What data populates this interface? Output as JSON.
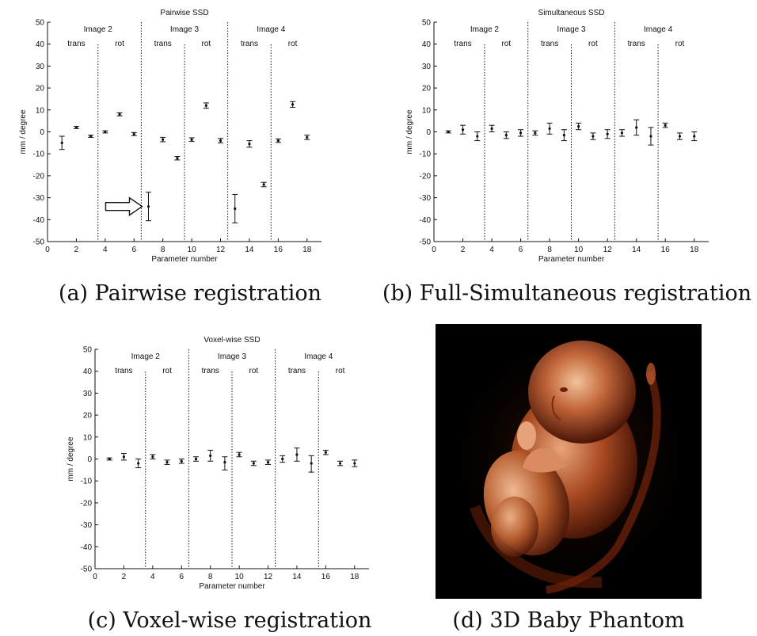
{
  "chart_data": [
    {
      "id": "a",
      "type": "scatter",
      "style": "errorbar",
      "title": "Pairwise SSD",
      "xlabel": "Parameter number",
      "ylabel": "mm / degree",
      "xlim": [
        0,
        19
      ],
      "ylim": [
        -50,
        50
      ],
      "xticks": [
        0,
        2,
        4,
        6,
        8,
        10,
        12,
        14,
        16,
        18
      ],
      "yticks": [
        50,
        40,
        30,
        20,
        10,
        0,
        -10,
        -20,
        -30,
        -40,
        -50
      ],
      "groups": [
        {
          "label": "Image 2",
          "range": [
            0.5,
            6.5
          ],
          "divider": 6.5
        },
        {
          "label": "Image 3",
          "range": [
            6.5,
            12.5
          ],
          "divider": 12.5
        },
        {
          "label": "Image 4",
          "range": [
            12.5,
            18.5
          ],
          "divider": null
        }
      ],
      "subgroups": [
        {
          "label": "trans",
          "center": 2
        },
        {
          "label": "rot",
          "center": 5
        },
        {
          "label": "trans",
          "center": 8
        },
        {
          "label": "rot",
          "center": 11
        },
        {
          "label": "trans",
          "center": 14
        },
        {
          "label": "rot",
          "center": 17
        }
      ],
      "subdividers": [
        3.5,
        9.5,
        15.5
      ],
      "points": [
        {
          "x": 1,
          "y": -5,
          "lo": -8,
          "hi": -2
        },
        {
          "x": 2,
          "y": 2,
          "lo": 1.5,
          "hi": 2.5
        },
        {
          "x": 3,
          "y": -2,
          "lo": -2.5,
          "hi": -1.5
        },
        {
          "x": 4,
          "y": 0,
          "lo": -0.5,
          "hi": 0.5
        },
        {
          "x": 5,
          "y": 8,
          "lo": 7.3,
          "hi": 8.7
        },
        {
          "x": 6,
          "y": -1,
          "lo": -1.7,
          "hi": -0.3
        },
        {
          "x": 7,
          "y": -34,
          "lo": -40.5,
          "hi": -27.5
        },
        {
          "x": 8,
          "y": -3.5,
          "lo": -4.5,
          "hi": -2.5
        },
        {
          "x": 9,
          "y": -12,
          "lo": -12.8,
          "hi": -11.2
        },
        {
          "x": 10,
          "y": -3.5,
          "lo": -4.3,
          "hi": -2.7
        },
        {
          "x": 11,
          "y": 12,
          "lo": 10.8,
          "hi": 13.2
        },
        {
          "x": 12,
          "y": -4,
          "lo": -5,
          "hi": -3
        },
        {
          "x": 13,
          "y": -35,
          "lo": -41.5,
          "hi": -28.5
        },
        {
          "x": 14,
          "y": -5.5,
          "lo": -7,
          "hi": -4
        },
        {
          "x": 15,
          "y": -24,
          "lo": -25,
          "hi": -23
        },
        {
          "x": 16,
          "y": -4,
          "lo": -4.8,
          "hi": -3.2
        },
        {
          "x": 17,
          "y": 12.5,
          "lo": 11.2,
          "hi": 13.8
        },
        {
          "x": 18,
          "y": -2.5,
          "lo": -3.5,
          "hi": -1.5
        }
      ],
      "annotation": {
        "type": "arrow",
        "pointing_to_parameter": 7
      }
    },
    {
      "id": "b",
      "type": "scatter",
      "style": "errorbar",
      "title": "Simultaneous SSD",
      "xlabel": "Parameter number",
      "ylabel": "mm / degree",
      "xlim": [
        0,
        19
      ],
      "ylim": [
        -50,
        50
      ],
      "xticks": [
        0,
        2,
        4,
        6,
        8,
        10,
        12,
        14,
        16,
        18
      ],
      "yticks": [
        50,
        40,
        30,
        20,
        10,
        0,
        -10,
        -20,
        -30,
        -40,
        -50
      ],
      "groups": [
        {
          "label": "Image 2",
          "range": [
            0.5,
            6.5
          ],
          "divider": 6.5
        },
        {
          "label": "Image 3",
          "range": [
            6.5,
            12.5
          ],
          "divider": 12.5
        },
        {
          "label": "Image 4",
          "range": [
            12.5,
            18.5
          ],
          "divider": null
        }
      ],
      "subgroups": [
        {
          "label": "trans",
          "center": 2
        },
        {
          "label": "rot",
          "center": 5
        },
        {
          "label": "trans",
          "center": 8
        },
        {
          "label": "rot",
          "center": 11
        },
        {
          "label": "trans",
          "center": 14
        },
        {
          "label": "rot",
          "center": 17
        }
      ],
      "subdividers": [
        3.5,
        9.5,
        15.5
      ],
      "points": [
        {
          "x": 1,
          "y": 0,
          "lo": -0.5,
          "hi": 0.5
        },
        {
          "x": 2,
          "y": 1,
          "lo": -1,
          "hi": 3
        },
        {
          "x": 3,
          "y": -2,
          "lo": -4,
          "hi": 0
        },
        {
          "x": 4,
          "y": 1.5,
          "lo": 0,
          "hi": 3
        },
        {
          "x": 5,
          "y": -1.5,
          "lo": -3,
          "hi": 0
        },
        {
          "x": 6,
          "y": -0.5,
          "lo": -2,
          "hi": 1
        },
        {
          "x": 7,
          "y": -0.5,
          "lo": -1.5,
          "hi": 0.5
        },
        {
          "x": 8,
          "y": 1.5,
          "lo": -1,
          "hi": 4
        },
        {
          "x": 9,
          "y": -1.5,
          "lo": -4,
          "hi": 1
        },
        {
          "x": 10,
          "y": 2.5,
          "lo": 1,
          "hi": 4
        },
        {
          "x": 11,
          "y": -2,
          "lo": -3.5,
          "hi": -0.5
        },
        {
          "x": 12,
          "y": -1,
          "lo": -3,
          "hi": 1
        },
        {
          "x": 13,
          "y": -0.5,
          "lo": -2,
          "hi": 1
        },
        {
          "x": 14,
          "y": 2,
          "lo": -1.5,
          "hi": 5.5
        },
        {
          "x": 15,
          "y": -2,
          "lo": -6,
          "hi": 2
        },
        {
          "x": 16,
          "y": 3,
          "lo": 2,
          "hi": 4
        },
        {
          "x": 17,
          "y": -2,
          "lo": -3.5,
          "hi": -0.5
        },
        {
          "x": 18,
          "y": -2,
          "lo": -4,
          "hi": 0
        }
      ]
    },
    {
      "id": "c",
      "type": "scatter",
      "style": "errorbar",
      "title": "Voxel-wise SSD",
      "xlabel": "Parameter number",
      "ylabel": "mm / degree",
      "xlim": [
        0,
        19
      ],
      "ylim": [
        -50,
        50
      ],
      "xticks": [
        0,
        2,
        4,
        6,
        8,
        10,
        12,
        14,
        16,
        18
      ],
      "yticks": [
        50,
        40,
        30,
        20,
        10,
        0,
        -10,
        -20,
        -30,
        -40,
        -50
      ],
      "groups": [
        {
          "label": "Image 2",
          "range": [
            0.5,
            6.5
          ],
          "divider": 6.5
        },
        {
          "label": "Image 3",
          "range": [
            6.5,
            12.5
          ],
          "divider": 12.5
        },
        {
          "label": "Image 4",
          "range": [
            12.5,
            18.5
          ],
          "divider": null
        }
      ],
      "subgroups": [
        {
          "label": "trans",
          "center": 2
        },
        {
          "label": "rot",
          "center": 5
        },
        {
          "label": "trans",
          "center": 8
        },
        {
          "label": "rot",
          "center": 11
        },
        {
          "label": "trans",
          "center": 14
        },
        {
          "label": "rot",
          "center": 17
        }
      ],
      "subdividers": [
        3.5,
        9.5,
        15.5
      ],
      "points": [
        {
          "x": 1,
          "y": 0,
          "lo": -0.5,
          "hi": 0.5
        },
        {
          "x": 2,
          "y": 1,
          "lo": -0.5,
          "hi": 2.5
        },
        {
          "x": 3,
          "y": -2,
          "lo": -4,
          "hi": 0
        },
        {
          "x": 4,
          "y": 1,
          "lo": 0,
          "hi": 2
        },
        {
          "x": 5,
          "y": -1.5,
          "lo": -2.5,
          "hi": -0.5
        },
        {
          "x": 6,
          "y": -1,
          "lo": -2,
          "hi": 0
        },
        {
          "x": 7,
          "y": 0,
          "lo": -1,
          "hi": 1
        },
        {
          "x": 8,
          "y": 1.5,
          "lo": -1,
          "hi": 4
        },
        {
          "x": 9,
          "y": -1.5,
          "lo": -5,
          "hi": 1
        },
        {
          "x": 10,
          "y": 2,
          "lo": 1,
          "hi": 3
        },
        {
          "x": 11,
          "y": -2,
          "lo": -3,
          "hi": -1
        },
        {
          "x": 12,
          "y": -1.5,
          "lo": -2.5,
          "hi": -0.5
        },
        {
          "x": 13,
          "y": 0,
          "lo": -1.5,
          "hi": 1.5
        },
        {
          "x": 14,
          "y": 2,
          "lo": -1,
          "hi": 5
        },
        {
          "x": 15,
          "y": -2,
          "lo": -6,
          "hi": 1.5
        },
        {
          "x": 16,
          "y": 3,
          "lo": 2,
          "hi": 4
        },
        {
          "x": 17,
          "y": -2,
          "lo": -3,
          "hi": -1
        },
        {
          "x": 18,
          "y": -2,
          "lo": -3.5,
          "hi": -0.5
        }
      ]
    }
  ],
  "captions": {
    "a": "(a) Pairwise registration",
    "b": "(b) Full-Simultaneous registration",
    "c": "(c) Voxel-wise registration",
    "d": "(d) 3D Baby Phantom"
  },
  "colors": {
    "ink": "#111111",
    "photo_bg": "#000000",
    "skin_light": "#f0b48a",
    "skin_mid": "#b8552a",
    "skin_dark": "#5a1a08"
  }
}
